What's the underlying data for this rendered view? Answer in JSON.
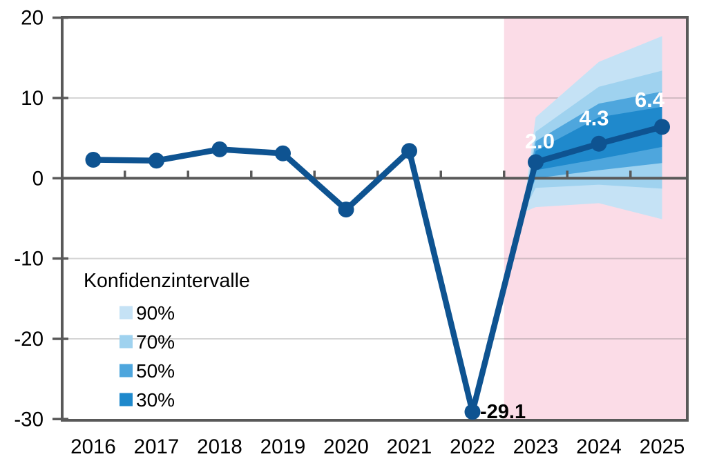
{
  "chart_data": {
    "type": "line",
    "title": "",
    "x": [
      2016,
      2017,
      2018,
      2019,
      2020,
      2021,
      2022,
      2023,
      2024,
      2025
    ],
    "series": [
      {
        "values": [
          2.3,
          2.2,
          3.6,
          3.1,
          -3.9,
          3.4,
          -29.1,
          2.0,
          4.3,
          6.4
        ],
        "color": "#0E5391",
        "forecast_from": 2023
      }
    ],
    "point_labels": [
      {
        "year": 2022,
        "text": "-29.1",
        "color": "#000000"
      },
      {
        "year": 2023,
        "text": "2.0",
        "color": "#FFFFFF"
      },
      {
        "year": 2024,
        "text": "4.3",
        "color": "#FFFFFF"
      },
      {
        "year": 2025,
        "text": "6.4",
        "color": "#FFFFFF"
      }
    ],
    "confidence_bands": [
      {
        "level": "90%",
        "color": "#C5E2F5",
        "x": [
          2022,
          2022.85,
          2023,
          2024,
          2025
        ],
        "upper": [
          -29.1,
          -1.1,
          7.6,
          14.5,
          17.7
        ],
        "lower": [
          -29.1,
          -4.1,
          -3.6,
          -3.1,
          -5.1
        ]
      },
      {
        "level": "70%",
        "color": "#9FD2EF",
        "x": [
          2022,
          2022.85,
          2023,
          2024,
          2025
        ],
        "upper": [
          -29.1,
          -1.7,
          5.8,
          11.4,
          13.4
        ],
        "lower": [
          -29.1,
          -3.5,
          -1.2,
          -0.8,
          -1.3
        ]
      },
      {
        "level": "50%",
        "color": "#4EA6DD",
        "x": [
          2022,
          2022.85,
          2023,
          2024,
          2025
        ],
        "upper": [
          -29.1,
          -2.0,
          4.6,
          9.3,
          10.8
        ],
        "lower": [
          -29.1,
          -3.2,
          0.0,
          1.0,
          1.9
        ]
      },
      {
        "level": "30%",
        "color": "#1F89CC",
        "x": [
          2022,
          2022.85,
          2023,
          2024,
          2025
        ],
        "upper": [
          -29.1,
          -2.3,
          3.4,
          7.6,
          8.9
        ],
        "lower": [
          -29.1,
          -2.9,
          1.0,
          2.4,
          3.9
        ]
      }
    ],
    "forecast_region": {
      "from": 2022.5,
      "color": "#FBDCE7"
    },
    "ylim": [
      -30,
      20
    ],
    "yticks": [
      20,
      10,
      0,
      -10,
      -20,
      -30
    ],
    "gridlines": [
      10,
      -10,
      -20
    ],
    "legend": {
      "title": "Konfidenzintervalle",
      "position": "inside-bottom-left",
      "items": [
        {
          "label": "90%",
          "color": "#C5E2F5"
        },
        {
          "label": "70%",
          "color": "#9FD2EF"
        },
        {
          "label": "50%",
          "color": "#4EA6DD"
        },
        {
          "label": "30%",
          "color": "#1F89CC"
        }
      ]
    },
    "colors": {
      "line": "#0E5391",
      "axis": "#595959",
      "grid": "#D9D9D9",
      "forecast_bg": "#FBDCE7",
      "text": "#000000"
    }
  }
}
